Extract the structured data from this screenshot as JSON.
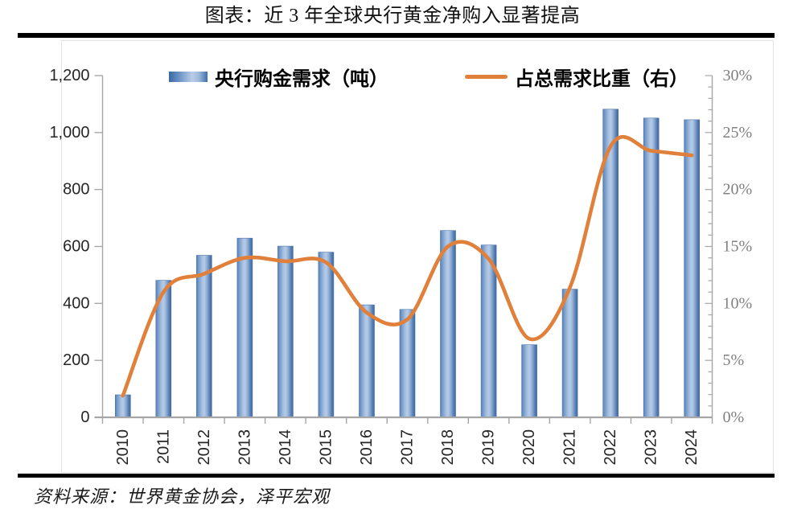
{
  "page": {
    "title": "图表：近 3 年全球央行黄金净购入显著提高",
    "source": "资料来源：世界黄金协会，泽平宏观"
  },
  "legend": {
    "bar_label": "央行购金需求（吨）",
    "line_label": "占总需求比重（右）"
  },
  "colors": {
    "bar_edge_dark": "#41699f",
    "bar_light": "#b6cbe6",
    "bar_main": "#5b84bb",
    "line_orange": "#e0803a",
    "axis_line": "#a6a6a6",
    "left_label_color": "#262626",
    "bottom_label_color": "#262626",
    "right_label_color": "#7f7f7f",
    "divider_black": "#000000"
  },
  "chart_data": {
    "type": "bar",
    "subtype": "bar+line dual-axis combo",
    "title": "图表：近 3 年全球央行黄金净购入显著提高",
    "categories": [
      "2010",
      "2011",
      "2012",
      "2013",
      "2014",
      "2015",
      "2016",
      "2017",
      "2018",
      "2019",
      "2020",
      "2021",
      "2022",
      "2023",
      "2024"
    ],
    "series": [
      {
        "name": "央行购金需求（吨）",
        "type": "bar",
        "axis": "left",
        "values": [
          79,
          481,
          569,
          629,
          601,
          580,
          395,
          379,
          656,
          605,
          255,
          450,
          1082,
          1051,
          1045
        ]
      },
      {
        "name": "占总需求比重（右）",
        "type": "line",
        "axis": "right",
        "values": [
          1.9,
          11.0,
          12.6,
          14.0,
          13.7,
          13.6,
          9.2,
          8.6,
          15.0,
          13.9,
          6.9,
          11.4,
          23.8,
          23.4,
          23.0
        ]
      }
    ],
    "left_axis": {
      "min": 0,
      "max": 1200,
      "tick_step": 200,
      "tick_labels": [
        "0",
        "200",
        "400",
        "600",
        "800",
        "1,000",
        "1,200"
      ]
    },
    "right_axis": {
      "min": 0,
      "max": 30,
      "tick_step": 5,
      "minor_tick_step": 1,
      "tick_labels": [
        "0%",
        "5%",
        "10%",
        "15%",
        "20%",
        "25%",
        "30%"
      ]
    },
    "xlabel": "",
    "ylabel": "",
    "grid": false,
    "legend_position": "top"
  }
}
